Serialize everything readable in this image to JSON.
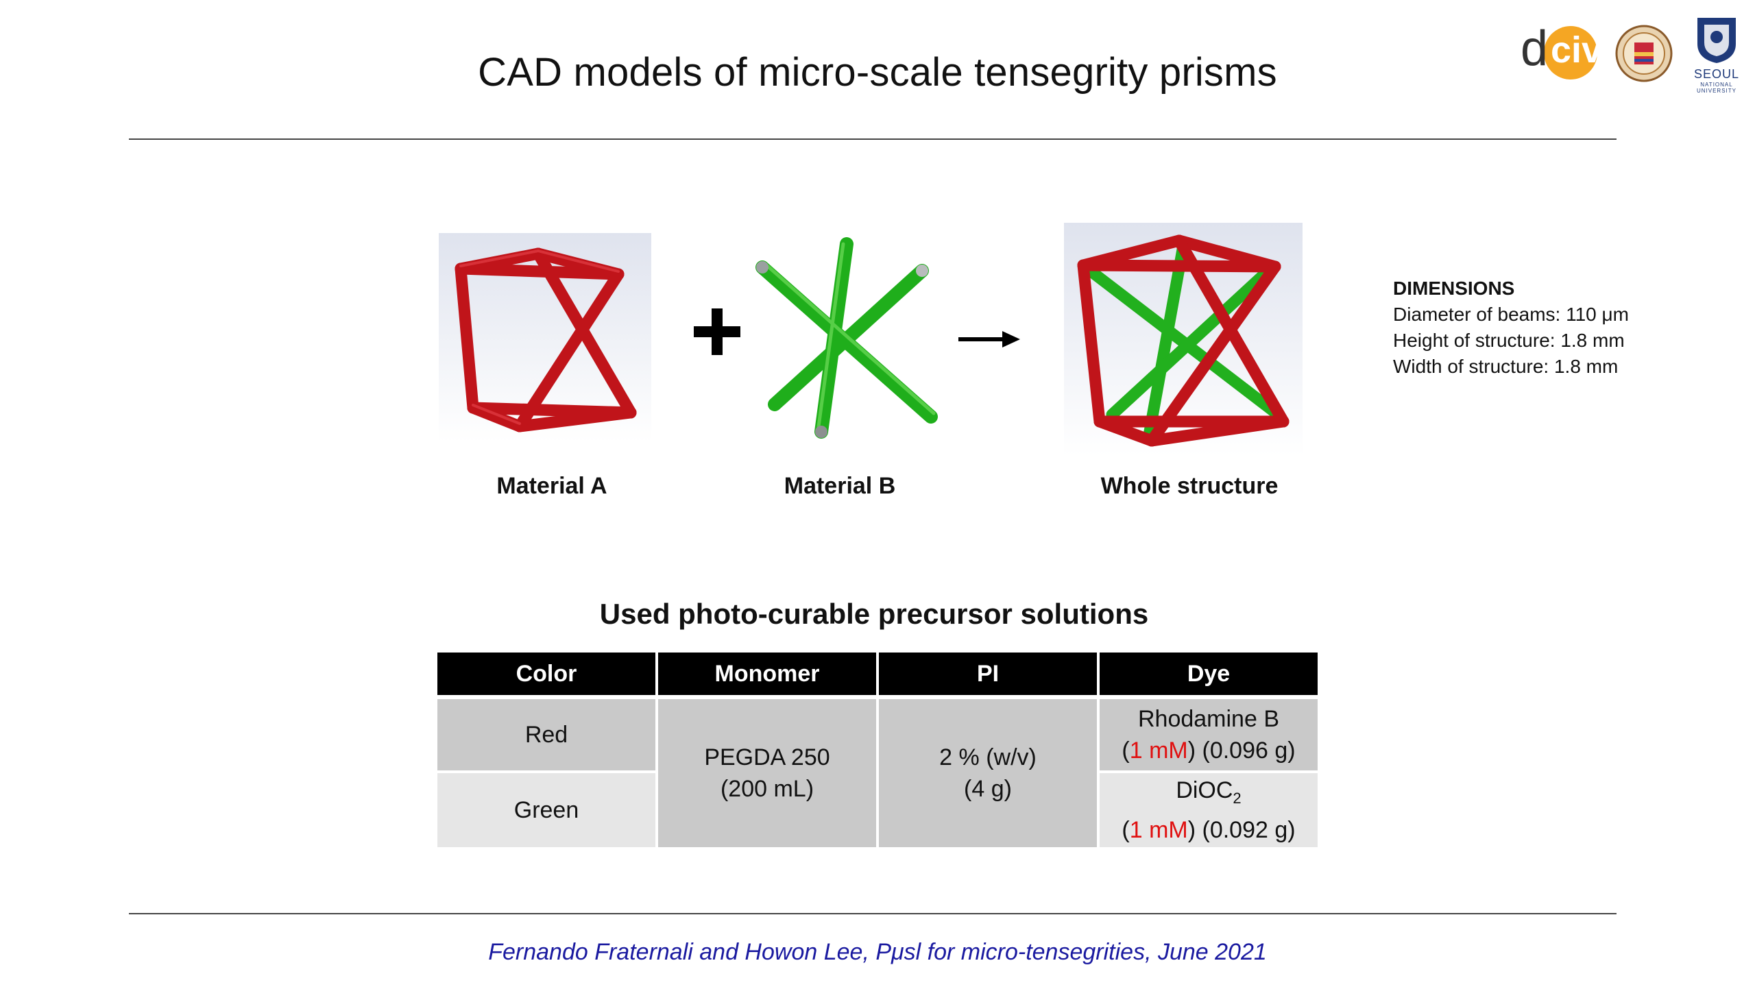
{
  "slide": {
    "title": "CAD models of micro-scale tensegrity prisms",
    "footer": "Fernando Fraternali and Howon Lee, Pμsl for micro-tensegrities, June 2021"
  },
  "logos": {
    "dciv": {
      "d": "d",
      "civ": "civ"
    },
    "snu": {
      "line1": "SEOUL",
      "line2": "NATIONAL",
      "line3": "UNIVERSITY"
    }
  },
  "figures": {
    "material_a": "Material A",
    "material_b": "Material B",
    "whole": "Whole structure"
  },
  "dimensions": {
    "heading": "DIMENSIONS",
    "lines": [
      "Diameter of beams: 110 μm",
      "Height of structure: 1.8 mm",
      "Width of structure: 1.8 mm"
    ]
  },
  "table": {
    "title": "Used photo-curable precursor solutions",
    "headers": [
      "Color",
      "Monomer",
      "PI",
      "Dye"
    ],
    "rows": {
      "red": "Red",
      "green": "Green",
      "monomer_l1": "PEGDA 250",
      "monomer_l2": "(200 mL)",
      "pi_l1": "2 % (w/v)",
      "pi_l2": "(4 g)",
      "dye_red_name": "Rhodamine B",
      "dye_red_conc": "1 mM",
      "dye_red_mass": "(0.096 g)",
      "dye_green_name": "DiOC",
      "dye_green_sub": "2",
      "dye_green_conc": "1 mM",
      "dye_green_mass": "(0.092 g)"
    }
  },
  "colors": {
    "red_beam": "#c0141a",
    "green_beam": "#22b01e",
    "footer_text": "#1a1aa0",
    "highlight": "#e01010"
  }
}
